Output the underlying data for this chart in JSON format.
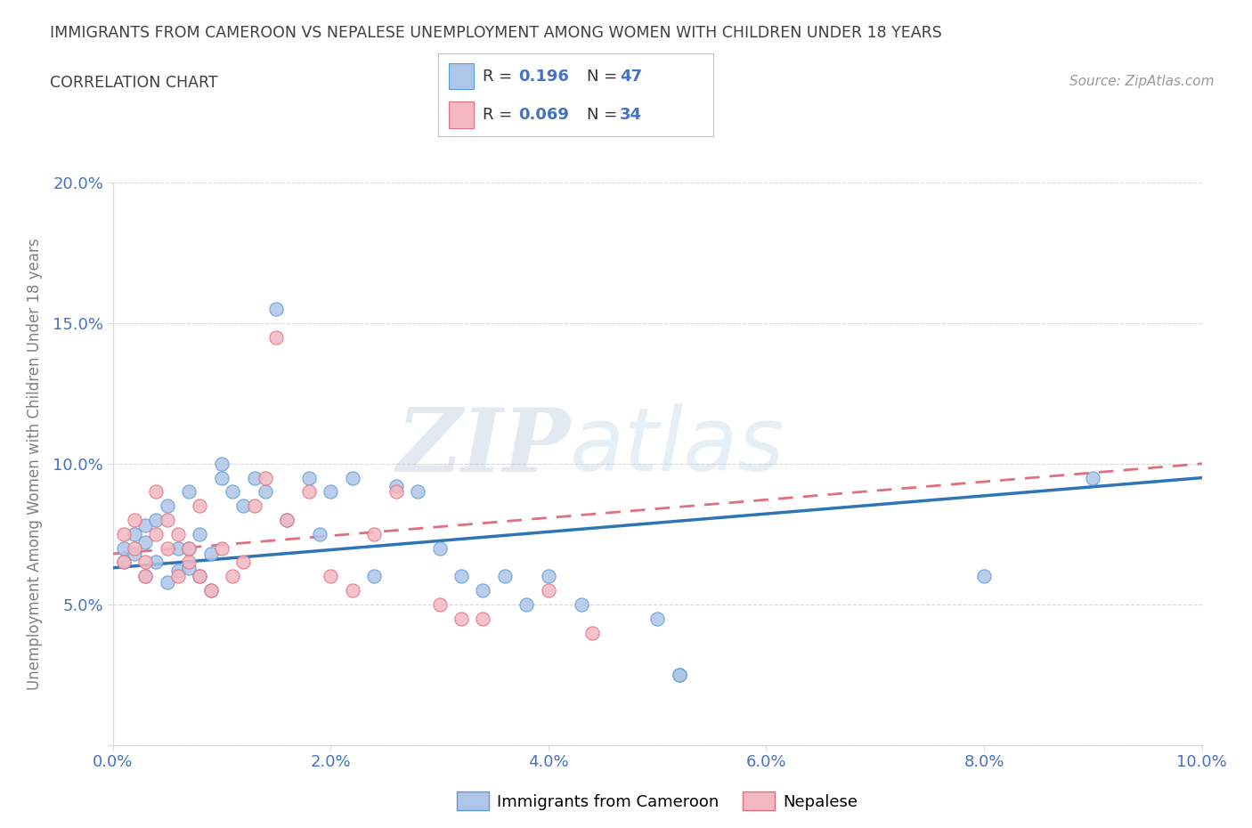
{
  "title": "IMMIGRANTS FROM CAMEROON VS NEPALESE UNEMPLOYMENT AMONG WOMEN WITH CHILDREN UNDER 18 YEARS",
  "subtitle": "CORRELATION CHART",
  "source": "Source: ZipAtlas.com",
  "watermark_zip": "ZIP",
  "watermark_atlas": "atlas",
  "ylabel": "Unemployment Among Women with Children Under 18 years",
  "xlim": [
    0.0,
    0.1
  ],
  "ylim": [
    0.0,
    0.2
  ],
  "xticks": [
    0.0,
    0.02,
    0.04,
    0.06,
    0.08,
    0.1
  ],
  "yticks": [
    0.0,
    0.05,
    0.1,
    0.15,
    0.2
  ],
  "ytick_labels": [
    "",
    "5.0%",
    "10.0%",
    "15.0%",
    "20.0%"
  ],
  "xtick_labels": [
    "0.0%",
    "2.0%",
    "4.0%",
    "6.0%",
    "8.0%",
    "10.0%"
  ],
  "cameroon_R": "0.196",
  "cameroon_N": "47",
  "nepalese_R": "0.069",
  "nepalese_N": "34",
  "cameroon_x": [
    0.001,
    0.001,
    0.002,
    0.002,
    0.003,
    0.003,
    0.003,
    0.004,
    0.004,
    0.005,
    0.005,
    0.006,
    0.006,
    0.007,
    0.007,
    0.007,
    0.008,
    0.008,
    0.009,
    0.009,
    0.01,
    0.01,
    0.011,
    0.012,
    0.013,
    0.014,
    0.015,
    0.016,
    0.018,
    0.019,
    0.02,
    0.022,
    0.024,
    0.026,
    0.028,
    0.03,
    0.032,
    0.034,
    0.036,
    0.038,
    0.04,
    0.043,
    0.05,
    0.052,
    0.052,
    0.08,
    0.09
  ],
  "cameroon_y": [
    0.065,
    0.07,
    0.075,
    0.068,
    0.06,
    0.072,
    0.078,
    0.065,
    0.08,
    0.058,
    0.085,
    0.07,
    0.062,
    0.063,
    0.07,
    0.09,
    0.06,
    0.075,
    0.055,
    0.068,
    0.095,
    0.1,
    0.09,
    0.085,
    0.095,
    0.09,
    0.155,
    0.08,
    0.095,
    0.075,
    0.09,
    0.095,
    0.06,
    0.092,
    0.09,
    0.07,
    0.06,
    0.055,
    0.06,
    0.05,
    0.06,
    0.05,
    0.045,
    0.025,
    0.025,
    0.06,
    0.095
  ],
  "nepalese_x": [
    0.001,
    0.001,
    0.002,
    0.002,
    0.003,
    0.003,
    0.004,
    0.004,
    0.005,
    0.005,
    0.006,
    0.006,
    0.007,
    0.007,
    0.008,
    0.008,
    0.009,
    0.01,
    0.011,
    0.012,
    0.013,
    0.014,
    0.015,
    0.016,
    0.018,
    0.02,
    0.022,
    0.024,
    0.026,
    0.03,
    0.032,
    0.034,
    0.04,
    0.044
  ],
  "nepalese_y": [
    0.065,
    0.075,
    0.07,
    0.08,
    0.06,
    0.065,
    0.075,
    0.09,
    0.07,
    0.08,
    0.075,
    0.06,
    0.065,
    0.07,
    0.06,
    0.085,
    0.055,
    0.07,
    0.06,
    0.065,
    0.085,
    0.095,
    0.145,
    0.08,
    0.09,
    0.06,
    0.055,
    0.075,
    0.09,
    0.05,
    0.045,
    0.045,
    0.055,
    0.04
  ],
  "cameroon_color": "#aec6e8",
  "cameroon_edge": "#5b9bd5",
  "nepalese_color": "#f4b8c1",
  "nepalese_edge": "#e07080",
  "line_cameroon_color": "#2e75b6",
  "line_nepalese_color": "#e07080",
  "background_color": "#ffffff",
  "grid_color": "#d9d9d9",
  "title_color": "#404040",
  "axis_color": "#808080",
  "tick_color": "#4472c4",
  "r_n_color": "#4472c4"
}
